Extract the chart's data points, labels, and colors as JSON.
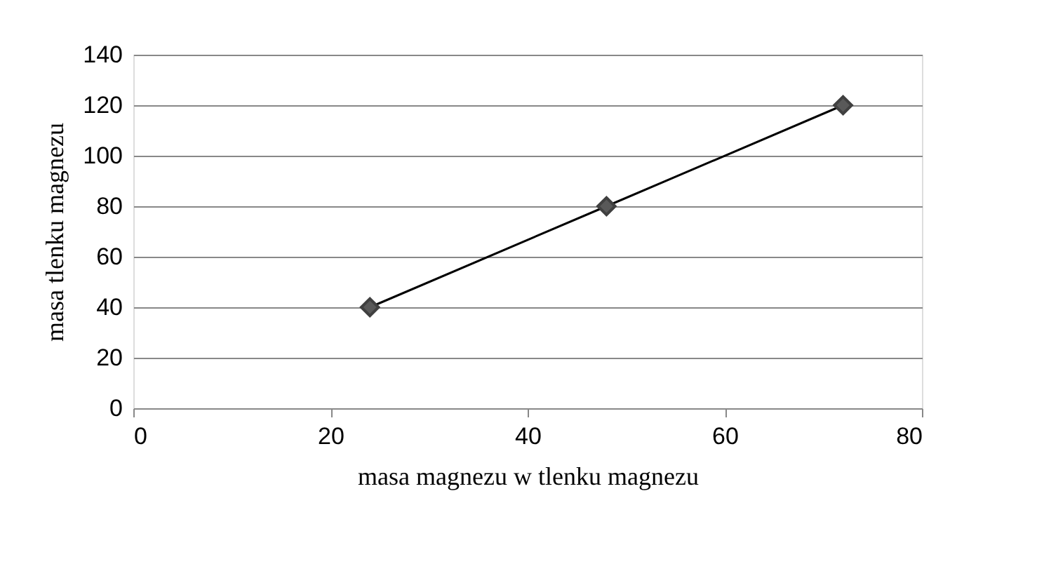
{
  "chart_data": {
    "type": "line",
    "xlabel": "masa magnezu w tlenku magnezu",
    "ylabel": "masa tlenku magnezu",
    "x": [
      24,
      48,
      72
    ],
    "series": [
      {
        "color": "#000000",
        "values": [
          40,
          80,
          120
        ]
      }
    ],
    "xlim": [
      0,
      80
    ],
    "xticks": [
      0,
      20,
      40,
      60,
      80
    ],
    "ylim": [
      0,
      140
    ],
    "yticks": [
      0,
      20,
      40,
      60,
      80,
      100,
      120,
      140
    ],
    "grid": "y",
    "legend": false,
    "marker": "diamond",
    "line_style": "solid"
  }
}
